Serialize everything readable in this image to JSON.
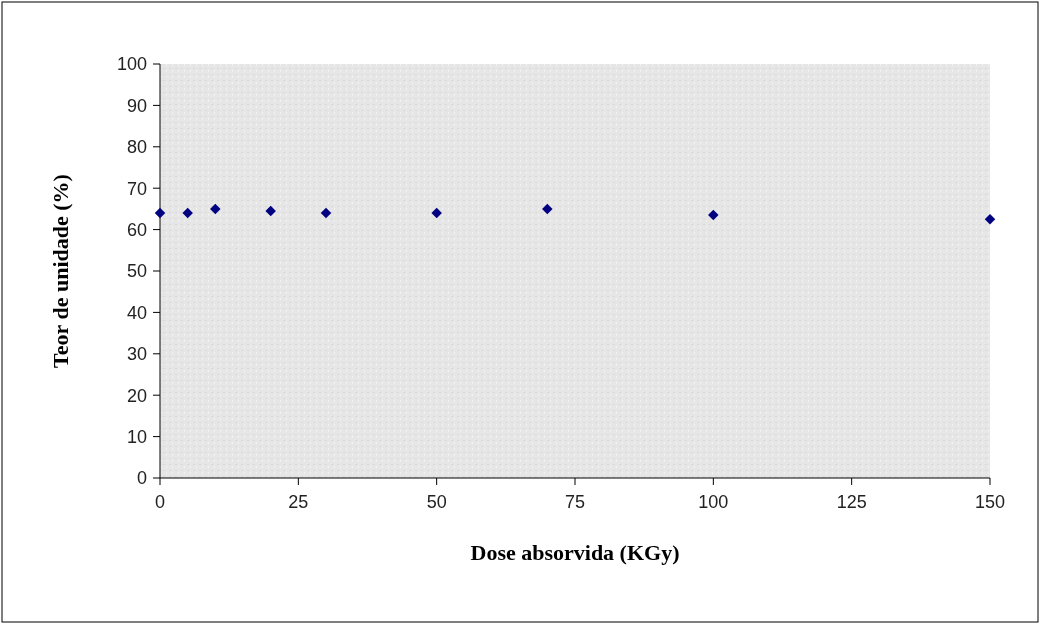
{
  "chart_data": {
    "type": "scatter",
    "xlabel": "Dose absorvida (KGy)",
    "ylabel": "Teor de unidade (%)",
    "x": [
      0,
      5,
      10,
      20,
      30,
      50,
      70,
      100,
      150
    ],
    "series": [
      {
        "color": "#000080",
        "values": [
          64,
          64,
          65,
          64.5,
          64,
          64,
          65,
          63.5,
          62.5
        ]
      }
    ],
    "xlim": [
      0,
      150
    ],
    "xticks": [
      0,
      25,
      50,
      75,
      100,
      125,
      150
    ],
    "ylim": [
      0,
      100
    ],
    "yticks": [
      0,
      10,
      20,
      30,
      40,
      50,
      60,
      70,
      80,
      90,
      100
    ],
    "marker": "diamond",
    "grid": false
  }
}
